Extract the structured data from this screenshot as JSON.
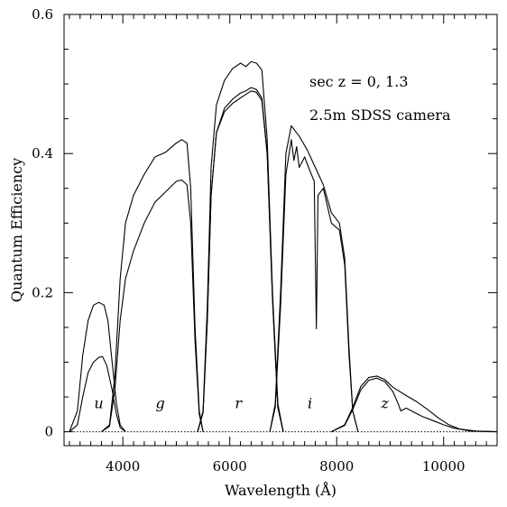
{
  "chart_data": {
    "type": "line",
    "xlabel": "Wavelength (Å)",
    "ylabel": "Quantum Efficiency",
    "xlim": [
      2900,
      11000
    ],
    "ylim": [
      -0.02,
      0.6
    ],
    "x_ticks": [
      4000,
      6000,
      8000,
      10000
    ],
    "x_tick_labels": [
      "4000",
      "6000",
      "8000",
      "10000"
    ],
    "y_ticks": [
      0,
      0.2,
      0.4,
      0.6
    ],
    "y_tick_labels": [
      "0",
      "0.2",
      "0.4",
      "0.6"
    ],
    "annotations": [
      "sec z = 0, 1.3",
      "2.5m SDSS camera"
    ],
    "band_labels": [
      {
        "text": "u",
        "x": 3550,
        "y": 0.04
      },
      {
        "text": "g",
        "x": 4700,
        "y": 0.04
      },
      {
        "text": "r",
        "x": 6160,
        "y": 0.04
      },
      {
        "text": "i",
        "x": 7500,
        "y": 0.04
      },
      {
        "text": "z",
        "x": 8900,
        "y": 0.04
      }
    ],
    "series": [
      {
        "band": "u",
        "airmass": 0,
        "points": [
          [
            3000,
            0.0
          ],
          [
            3150,
            0.03
          ],
          [
            3250,
            0.11
          ],
          [
            3350,
            0.16
          ],
          [
            3450,
            0.182
          ],
          [
            3550,
            0.186
          ],
          [
            3650,
            0.182
          ],
          [
            3720,
            0.16
          ],
          [
            3800,
            0.1
          ],
          [
            3880,
            0.04
          ],
          [
            3950,
            0.01
          ],
          [
            4050,
            0.0
          ]
        ]
      },
      {
        "band": "u",
        "airmass": 1.3,
        "points": [
          [
            3000,
            0.0
          ],
          [
            3150,
            0.01
          ],
          [
            3250,
            0.05
          ],
          [
            3350,
            0.085
          ],
          [
            3450,
            0.1
          ],
          [
            3550,
            0.107
          ],
          [
            3620,
            0.108
          ],
          [
            3700,
            0.095
          ],
          [
            3800,
            0.06
          ],
          [
            3880,
            0.025
          ],
          [
            3950,
            0.006
          ],
          [
            4050,
            0.0
          ]
        ]
      },
      {
        "band": "g",
        "airmass": 0,
        "points": [
          [
            3600,
            0.0
          ],
          [
            3750,
            0.01
          ],
          [
            3850,
            0.08
          ],
          [
            3950,
            0.22
          ],
          [
            4050,
            0.3
          ],
          [
            4200,
            0.34
          ],
          [
            4400,
            0.37
          ],
          [
            4600,
            0.395
          ],
          [
            4800,
            0.402
          ],
          [
            5000,
            0.415
          ],
          [
            5100,
            0.42
          ],
          [
            5200,
            0.415
          ],
          [
            5270,
            0.35
          ],
          [
            5350,
            0.15
          ],
          [
            5430,
            0.03
          ],
          [
            5500,
            0.0
          ]
        ]
      },
      {
        "band": "g",
        "airmass": 1.3,
        "points": [
          [
            3600,
            0.0
          ],
          [
            3750,
            0.008
          ],
          [
            3850,
            0.06
          ],
          [
            3950,
            0.16
          ],
          [
            4050,
            0.22
          ],
          [
            4200,
            0.26
          ],
          [
            4400,
            0.3
          ],
          [
            4600,
            0.33
          ],
          [
            4800,
            0.345
          ],
          [
            5000,
            0.36
          ],
          [
            5100,
            0.362
          ],
          [
            5200,
            0.355
          ],
          [
            5270,
            0.3
          ],
          [
            5350,
            0.13
          ],
          [
            5430,
            0.025
          ],
          [
            5500,
            0.0
          ]
        ]
      },
      {
        "band": "r",
        "airmass": 0,
        "points": [
          [
            5400,
            0.0
          ],
          [
            5500,
            0.03
          ],
          [
            5580,
            0.18
          ],
          [
            5650,
            0.38
          ],
          [
            5750,
            0.47
          ],
          [
            5900,
            0.505
          ],
          [
            6050,
            0.522
          ],
          [
            6200,
            0.53
          ],
          [
            6300,
            0.525
          ],
          [
            6400,
            0.532
          ],
          [
            6500,
            0.53
          ],
          [
            6600,
            0.52
          ],
          [
            6700,
            0.42
          ],
          [
            6800,
            0.2
          ],
          [
            6900,
            0.04
          ],
          [
            7000,
            0.0
          ]
        ]
      },
      {
        "band": "r",
        "airmass": 1.3,
        "points": [
          [
            5400,
            0.0
          ],
          [
            5500,
            0.028
          ],
          [
            5580,
            0.16
          ],
          [
            5650,
            0.34
          ],
          [
            5750,
            0.43
          ],
          [
            5900,
            0.465
          ],
          [
            6050,
            0.478
          ],
          [
            6200,
            0.487
          ],
          [
            6300,
            0.49
          ],
          [
            6400,
            0.495
          ],
          [
            6500,
            0.492
          ],
          [
            6600,
            0.48
          ],
          [
            6700,
            0.4
          ],
          [
            6800,
            0.19
          ],
          [
            6900,
            0.035
          ],
          [
            7000,
            0.0
          ]
        ]
      },
      {
        "band": "r",
        "airmass": 1.3,
        "points": [
          [
            5400,
            0.0
          ],
          [
            5500,
            0.028
          ],
          [
            5580,
            0.16
          ],
          [
            5650,
            0.34
          ],
          [
            5750,
            0.43
          ],
          [
            5900,
            0.46
          ],
          [
            6050,
            0.472
          ],
          [
            6200,
            0.48
          ],
          [
            6300,
            0.485
          ],
          [
            6400,
            0.49
          ],
          [
            6500,
            0.488
          ],
          [
            6600,
            0.476
          ],
          [
            6700,
            0.398
          ],
          [
            6800,
            0.19
          ],
          [
            6900,
            0.035
          ],
          [
            7000,
            0.0
          ]
        ]
      },
      {
        "band": "i",
        "airmass": 0,
        "points": [
          [
            6750,
            0.0
          ],
          [
            6850,
            0.04
          ],
          [
            6950,
            0.2
          ],
          [
            7050,
            0.4
          ],
          [
            7150,
            0.44
          ],
          [
            7300,
            0.425
          ],
          [
            7450,
            0.405
          ],
          [
            7600,
            0.38
          ],
          [
            7750,
            0.355
          ],
          [
            7900,
            0.315
          ],
          [
            8050,
            0.3
          ],
          [
            8150,
            0.25
          ],
          [
            8230,
            0.12
          ],
          [
            8300,
            0.03
          ],
          [
            8400,
            0.0
          ]
        ]
      },
      {
        "band": "i",
        "airmass": 1.3,
        "points": [
          [
            6750,
            0.0
          ],
          [
            6850,
            0.035
          ],
          [
            6950,
            0.18
          ],
          [
            7050,
            0.37
          ],
          [
            7150,
            0.42
          ],
          [
            7200,
            0.39
          ],
          [
            7250,
            0.41
          ],
          [
            7300,
            0.38
          ],
          [
            7400,
            0.395
          ],
          [
            7500,
            0.375
          ],
          [
            7580,
            0.36
          ],
          [
            7620,
            0.148
          ],
          [
            7650,
            0.34
          ],
          [
            7750,
            0.35
          ],
          [
            7900,
            0.3
          ],
          [
            8050,
            0.29
          ],
          [
            8150,
            0.24
          ],
          [
            8230,
            0.11
          ],
          [
            8300,
            0.03
          ],
          [
            8400,
            0.0
          ]
        ]
      },
      {
        "band": "z",
        "airmass": 0,
        "points": [
          [
            7900,
            0.0
          ],
          [
            8150,
            0.01
          ],
          [
            8300,
            0.035
          ],
          [
            8450,
            0.065
          ],
          [
            8600,
            0.078
          ],
          [
            8750,
            0.08
          ],
          [
            8900,
            0.075
          ],
          [
            9050,
            0.064
          ],
          [
            9300,
            0.052
          ],
          [
            9500,
            0.043
          ],
          [
            9700,
            0.032
          ],
          [
            9900,
            0.02
          ],
          [
            10100,
            0.01
          ],
          [
            10300,
            0.004
          ],
          [
            10600,
            0.001
          ],
          [
            11000,
            0.0
          ]
        ]
      },
      {
        "band": "z",
        "airmass": 1.3,
        "points": [
          [
            7900,
            0.0
          ],
          [
            8150,
            0.009
          ],
          [
            8300,
            0.032
          ],
          [
            8450,
            0.06
          ],
          [
            8600,
            0.074
          ],
          [
            8750,
            0.077
          ],
          [
            8900,
            0.072
          ],
          [
            9050,
            0.058
          ],
          [
            9150,
            0.04
          ],
          [
            9200,
            0.03
          ],
          [
            9300,
            0.034
          ],
          [
            9450,
            0.028
          ],
          [
            9600,
            0.022
          ],
          [
            9800,
            0.016
          ],
          [
            10000,
            0.01
          ],
          [
            10200,
            0.005
          ],
          [
            10500,
            0.001
          ],
          [
            11000,
            0.0
          ]
        ]
      }
    ]
  }
}
